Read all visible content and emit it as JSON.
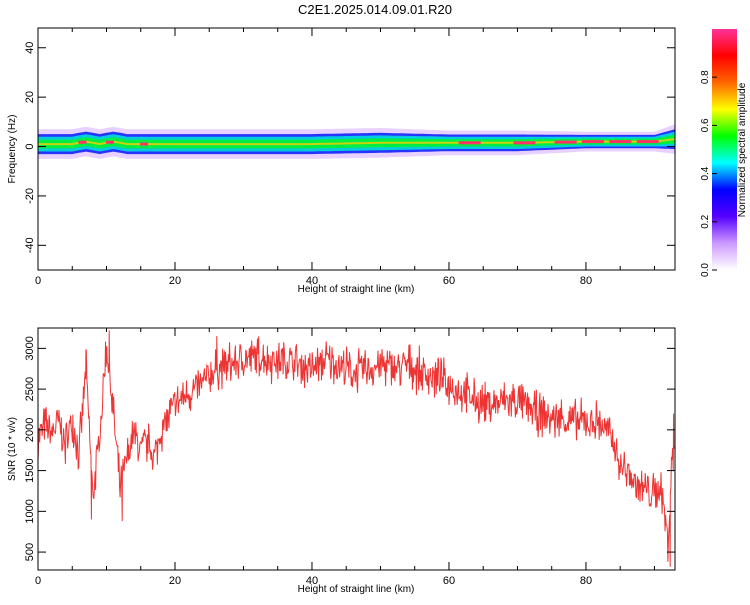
{
  "title": "C2E1.2025.014.09.01.R20",
  "colors": {
    "snr_line": "#ee3333",
    "ridge_core": "#ff3366",
    "band_bright": "#00ee44",
    "band_mid": "#00ccdd",
    "band_low": "#1122ff",
    "band_halo": "#cc99ff"
  },
  "chart_data": [
    {
      "type": "heatmap",
      "xlabel": "Height of straight line (km)",
      "ylabel": "Frequency (Hz)",
      "xlim": [
        0,
        93
      ],
      "ylim": [
        -50,
        48
      ],
      "xticks": [
        "0",
        "20",
        "40",
        "60",
        "80"
      ],
      "yticks": [
        "-40",
        "-20",
        "0",
        "20",
        "40"
      ],
      "ridge": {
        "x": [
          0,
          5,
          7,
          9,
          11,
          13,
          15,
          20,
          30,
          40,
          50,
          60,
          70,
          80,
          90,
          93
        ],
        "peak_freq": [
          1,
          1,
          2,
          1,
          2,
          1,
          1,
          1,
          1,
          1,
          1.5,
          1.5,
          1.5,
          2,
          2,
          3
        ],
        "band_halfwidth": [
          3,
          3,
          3,
          3,
          3,
          3,
          3,
          3,
          3,
          3,
          3,
          2.5,
          2.5,
          2,
          2,
          3
        ]
      },
      "colorbar": {
        "label": "Normalized spectral amplitude",
        "range": [
          0,
          1
        ],
        "ticks": [
          "0.0",
          "0.2",
          "0.4",
          "0.6",
          "0.8"
        ],
        "colors": [
          "#ffffff",
          "#cc99ff",
          "#5500ff",
          "#0000ff",
          "#00ffff",
          "#00ff00",
          "#ffff00",
          "#ff6600",
          "#ff0000",
          "#ff3399"
        ]
      }
    },
    {
      "type": "line",
      "xlabel": "Height of straight line (km)",
      "ylabel": "SNR (10 * v/v)",
      "xlim": [
        0,
        93
      ],
      "ylim": [
        280,
        3250
      ],
      "xticks": [
        "0",
        "20",
        "40",
        "60",
        "80"
      ],
      "yticks": [
        "500",
        "1000",
        "1500",
        "2000",
        "2500",
        "3000"
      ],
      "series": [
        {
          "x": [
            0,
            1,
            2,
            3,
            4,
            5,
            6,
            7,
            8,
            9,
            10,
            11,
            12,
            13,
            14,
            15,
            16,
            17,
            18,
            19,
            20,
            22,
            24,
            26,
            28,
            30,
            32,
            34,
            36,
            38,
            40,
            42,
            44,
            46,
            48,
            50,
            52,
            54,
            56,
            58,
            60,
            62,
            64,
            66,
            68,
            70,
            72,
            74,
            76,
            78,
            80,
            82,
            84,
            85,
            86,
            87,
            88,
            89,
            90,
            91,
            92,
            92.5,
            93
          ],
          "values": [
            1900,
            2050,
            1950,
            2100,
            1800,
            2150,
            1700,
            2750,
            1200,
            1900,
            3050,
            2200,
            1250,
            1650,
            1950,
            1750,
            1850,
            1650,
            2000,
            2150,
            2300,
            2450,
            2550,
            2750,
            2800,
            2850,
            2900,
            2850,
            2850,
            2800,
            2750,
            2850,
            2800,
            2700,
            2750,
            2800,
            2750,
            2800,
            2700,
            2650,
            2550,
            2450,
            2350,
            2300,
            2350,
            2350,
            2250,
            2150,
            2150,
            2100,
            2100,
            2100,
            1850,
            1550,
            1500,
            1350,
            1300,
            1250,
            1200,
            1300,
            600,
            1600,
            1800
          ],
          "jitter": 230,
          "spikes": [
            {
              "x": 7.0,
              "v": 2980
            },
            {
              "x": 7.8,
              "v": 900
            },
            {
              "x": 10.4,
              "v": 3220
            },
            {
              "x": 12.3,
              "v": 880
            },
            {
              "x": 26.1,
              "v": 3150
            },
            {
              "x": 92.3,
              "v": 320
            },
            {
              "x": 92.8,
              "v": 2200
            }
          ]
        }
      ]
    }
  ]
}
